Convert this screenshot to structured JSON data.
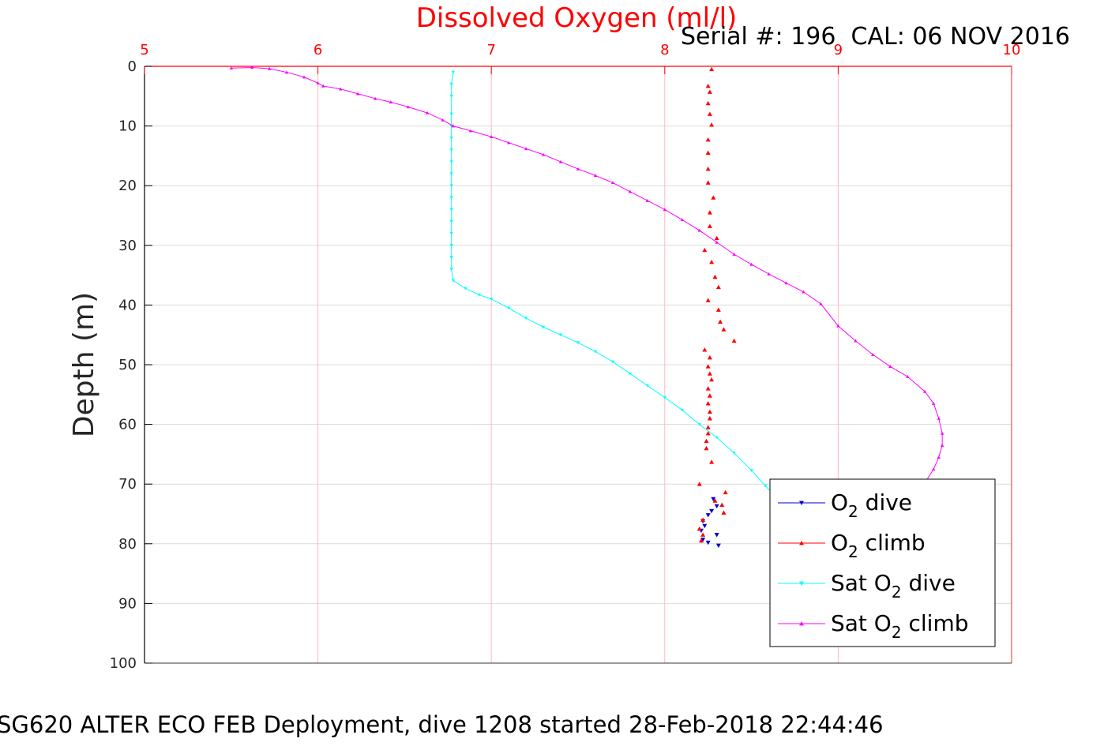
{
  "chart_data": {
    "type": "line",
    "title": "Dissolved Oxygen (ml/l)",
    "subtitle": "Serial #: 196  CAL: 06 NOV 2016",
    "footer": "SG620 ALTER ECO FEB Deployment, dive 1208 started 28-Feb-2018 22:44:46",
    "xlabel": "",
    "ylabel": "Depth (m)",
    "xlim": [
      5,
      10
    ],
    "ylim": [
      0,
      100
    ],
    "y_reversed": true,
    "x_axis_position": "top",
    "xticks": [
      5,
      6,
      7,
      8,
      9,
      10
    ],
    "yticks": [
      0,
      10,
      20,
      30,
      40,
      50,
      60,
      70,
      80,
      90,
      100
    ],
    "grid": true,
    "legend_position": "bottom-right",
    "colors": {
      "title": "#ff0000",
      "x_ticks": "#ff0000",
      "x_grid": "#ffb6c1",
      "y_grid": "#dcdcdc",
      "axes": "#000000"
    },
    "series": [
      {
        "name": "O2 dive",
        "legend_main": "O",
        "legend_sub": "2",
        "legend_rest": " dive",
        "color": "#0000cc",
        "marker": "triangle-down",
        "line": false,
        "points": [
          [
            8.28,
            72.5
          ],
          [
            8.3,
            73.7
          ],
          [
            8.27,
            74.5
          ],
          [
            8.25,
            75.2
          ],
          [
            8.22,
            76.2
          ],
          [
            8.23,
            77.0
          ],
          [
            8.21,
            77.8
          ],
          [
            8.3,
            78.5
          ],
          [
            8.22,
            79.3
          ],
          [
            8.25,
            79.8
          ],
          [
            8.31,
            80.3
          ]
        ]
      },
      {
        "name": "O2 climb",
        "legend_main": "O",
        "legend_sub": "2",
        "legend_rest": " climb",
        "color": "#ff0000",
        "marker": "triangle-up",
        "line": false,
        "points": [
          [
            8.27,
            0.5
          ],
          [
            8.25,
            3.3
          ],
          [
            8.26,
            4.3
          ],
          [
            8.25,
            6.2
          ],
          [
            8.26,
            8.0
          ],
          [
            8.27,
            9.8
          ],
          [
            8.25,
            12.3
          ],
          [
            8.25,
            14.5
          ],
          [
            8.25,
            17.2
          ],
          [
            8.25,
            19.5
          ],
          [
            8.28,
            22.0
          ],
          [
            8.26,
            24.5
          ],
          [
            8.26,
            26.8
          ],
          [
            8.3,
            28.8
          ],
          [
            8.23,
            30.8
          ],
          [
            8.27,
            32.8
          ],
          [
            8.29,
            35.3
          ],
          [
            8.31,
            37.0
          ],
          [
            8.25,
            39.2
          ],
          [
            8.31,
            40.8
          ],
          [
            8.32,
            42.8
          ],
          [
            8.34,
            44.1
          ],
          [
            8.4,
            46.0
          ],
          [
            8.23,
            47.5
          ],
          [
            8.26,
            48.8
          ],
          [
            8.25,
            50.3
          ],
          [
            8.26,
            51.5
          ],
          [
            8.27,
            52.5
          ],
          [
            8.25,
            54.0
          ],
          [
            8.26,
            55.2
          ],
          [
            8.25,
            56.5
          ],
          [
            8.26,
            57.9
          ],
          [
            8.26,
            59.0
          ],
          [
            8.25,
            60.5
          ],
          [
            8.25,
            61.5
          ],
          [
            8.24,
            62.8
          ],
          [
            8.24,
            64.0
          ],
          [
            8.27,
            66.3
          ],
          [
            8.2,
            70.0
          ],
          [
            8.35,
            71.4
          ],
          [
            8.29,
            72.8
          ],
          [
            8.33,
            73.5
          ],
          [
            8.34,
            74.8
          ],
          [
            8.22,
            76.0
          ],
          [
            8.2,
            77.5
          ],
          [
            8.22,
            78.5
          ],
          [
            8.21,
            79.5
          ]
        ]
      },
      {
        "name": "Sat O2 dive",
        "legend_main": "Sat O",
        "legend_sub": "2",
        "legend_rest": " dive",
        "color": "#00ffff",
        "marker": "triangle-down",
        "line": true,
        "points": [
          [
            6.78,
            1
          ],
          [
            6.77,
            3
          ],
          [
            6.77,
            5
          ],
          [
            6.77,
            8
          ],
          [
            6.77,
            10
          ],
          [
            6.77,
            12
          ],
          [
            6.77,
            14
          ],
          [
            6.77,
            16
          ],
          [
            6.77,
            18
          ],
          [
            6.77,
            20
          ],
          [
            6.77,
            22
          ],
          [
            6.77,
            24
          ],
          [
            6.77,
            26
          ],
          [
            6.77,
            28
          ],
          [
            6.77,
            30
          ],
          [
            6.77,
            32
          ],
          [
            6.77,
            34
          ],
          [
            6.78,
            35.9
          ],
          [
            6.85,
            37.2
          ],
          [
            6.93,
            38.3
          ],
          [
            7.0,
            39.0
          ],
          [
            7.1,
            40.5
          ],
          [
            7.2,
            42.2
          ],
          [
            7.3,
            43.7
          ],
          [
            7.4,
            45.0
          ],
          [
            7.5,
            46.3
          ],
          [
            7.6,
            47.8
          ],
          [
            7.7,
            49.5
          ],
          [
            7.8,
            51.5
          ],
          [
            7.9,
            53.5
          ],
          [
            8.0,
            55.5
          ],
          [
            8.1,
            57.6
          ],
          [
            8.2,
            60.0
          ],
          [
            8.3,
            62.2
          ],
          [
            8.4,
            64.8
          ],
          [
            8.5,
            67.7
          ],
          [
            8.58,
            70.3
          ],
          [
            8.62,
            71.5
          ],
          [
            8.66,
            72.6
          ]
        ]
      },
      {
        "name": "Sat O2 climb",
        "legend_main": "Sat O",
        "legend_sub": "2",
        "legend_rest": " climb",
        "color": "#ff00ff",
        "marker": "triangle-up",
        "line": true,
        "points": [
          [
            5.5,
            0.3
          ],
          [
            5.62,
            0.2
          ],
          [
            5.72,
            0.4
          ],
          [
            5.82,
            1.0
          ],
          [
            5.92,
            1.8
          ],
          [
            6.0,
            2.8
          ],
          [
            6.03,
            3.3
          ],
          [
            6.13,
            3.8
          ],
          [
            6.23,
            4.6
          ],
          [
            6.33,
            5.4
          ],
          [
            6.42,
            6.0
          ],
          [
            6.52,
            6.8
          ],
          [
            6.63,
            7.8
          ],
          [
            6.72,
            9.0
          ],
          [
            6.78,
            10.0
          ],
          [
            6.88,
            10.8
          ],
          [
            7.0,
            11.8
          ],
          [
            7.1,
            12.8
          ],
          [
            7.2,
            13.8
          ],
          [
            7.3,
            14.8
          ],
          [
            7.4,
            16.0
          ],
          [
            7.5,
            17.2
          ],
          [
            7.6,
            18.3
          ],
          [
            7.7,
            19.5
          ],
          [
            7.8,
            21.0
          ],
          [
            7.9,
            22.5
          ],
          [
            8.0,
            24.0
          ],
          [
            8.1,
            25.7
          ],
          [
            8.2,
            27.5
          ],
          [
            8.3,
            29.5
          ],
          [
            8.4,
            31.5
          ],
          [
            8.5,
            33.2
          ],
          [
            8.6,
            34.8
          ],
          [
            8.7,
            36.3
          ],
          [
            8.8,
            37.8
          ],
          [
            8.9,
            39.8
          ],
          [
            9.0,
            43.5
          ],
          [
            9.1,
            46.0
          ],
          [
            9.2,
            48.3
          ],
          [
            9.3,
            50.3
          ],
          [
            9.4,
            52.0
          ],
          [
            9.5,
            54.5
          ],
          [
            9.55,
            56.5
          ],
          [
            9.58,
            59.0
          ],
          [
            9.6,
            61.5
          ],
          [
            9.6,
            63.5
          ],
          [
            9.58,
            65.5
          ],
          [
            9.55,
            67.5
          ],
          [
            9.5,
            69.8
          ],
          [
            9.45,
            71.5
          ]
        ]
      }
    ]
  }
}
